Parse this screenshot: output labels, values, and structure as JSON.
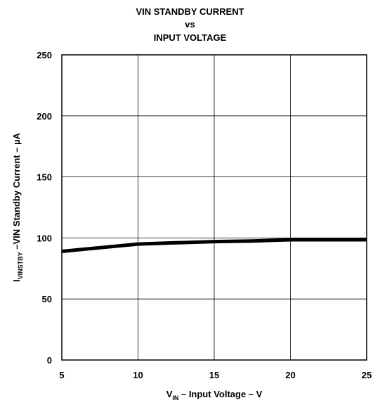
{
  "chart_data": {
    "type": "line",
    "title": [
      "VIN STANDBY CURRENT",
      "vs",
      "INPUT VOLTAGE"
    ],
    "xlabel": {
      "main": "V",
      "sub": "IN",
      "rest": " – Input Voltage – V"
    },
    "ylabel": {
      "main": "I",
      "sub": "VINSTBY",
      "rest": " –VIN Standby Current – µA"
    },
    "xlim": [
      5,
      25
    ],
    "ylim": [
      0,
      250
    ],
    "x_ticks": [
      "5",
      "10",
      "15",
      "20",
      "25"
    ],
    "y_ticks": [
      "0",
      "50",
      "100",
      "150",
      "200",
      "250"
    ],
    "grid": true,
    "series": [
      {
        "color": "#000000",
        "x": [
          5,
          10,
          12.5,
          15,
          17.5,
          20,
          22.5,
          25
        ],
        "y": [
          89,
          95,
          96,
          97,
          97.5,
          98.5,
          98.5,
          98.5
        ]
      }
    ]
  }
}
